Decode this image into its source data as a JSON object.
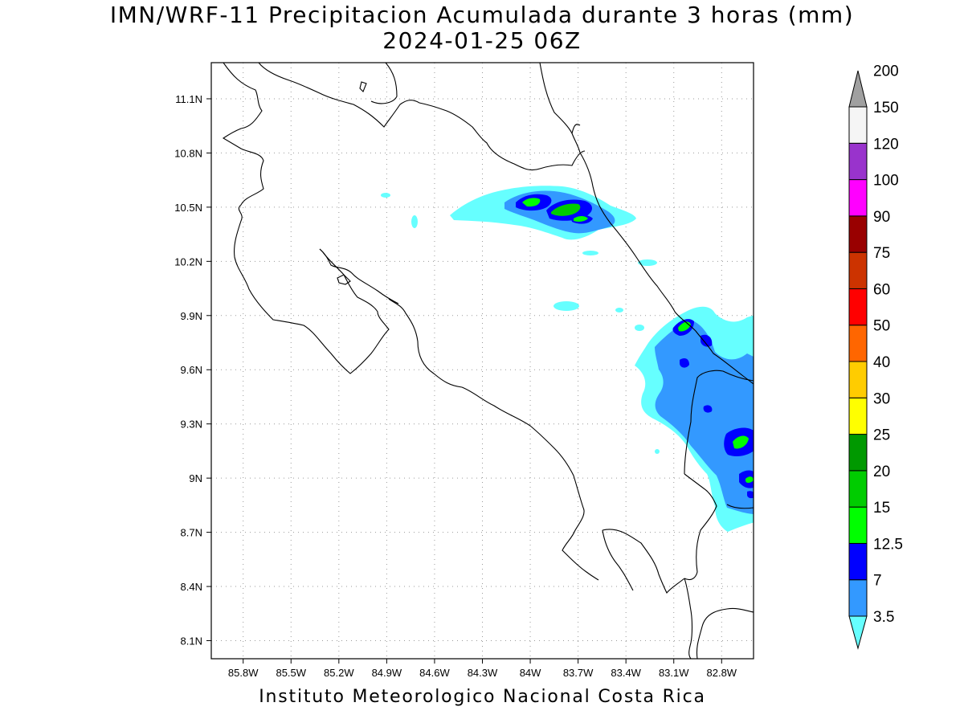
{
  "header": {
    "title": "IMN/WRF-11 Precipitacion Acumulada durante 3 horas (mm)",
    "subtitle": "2024-01-25 06Z"
  },
  "footer": {
    "credit": "Instituto Meteorologico Nacional Costa Rica"
  },
  "map": {
    "lon_range": [
      -86.0,
      -82.6
    ],
    "lat_range": [
      8.0,
      11.3
    ],
    "lon_ticks": [
      {
        "value": -85.8,
        "label": "85.8W"
      },
      {
        "value": -85.5,
        "label": "85.5W"
      },
      {
        "value": -85.2,
        "label": "85.2W"
      },
      {
        "value": -84.9,
        "label": "84.9W"
      },
      {
        "value": -84.6,
        "label": "84.6W"
      },
      {
        "value": -84.3,
        "label": "84.3W"
      },
      {
        "value": -84.0,
        "label": "84W"
      },
      {
        "value": -83.7,
        "label": "83.7W"
      },
      {
        "value": -83.4,
        "label": "83.4W"
      },
      {
        "value": -83.1,
        "label": "83.1W"
      },
      {
        "value": -82.8,
        "label": "82.8W"
      }
    ],
    "lat_ticks": [
      {
        "value": 8.1,
        "label": "8.1N"
      },
      {
        "value": 8.4,
        "label": "8.4N"
      },
      {
        "value": 8.7,
        "label": "8.7N"
      },
      {
        "value": 9.0,
        "label": "9N"
      },
      {
        "value": 9.3,
        "label": "9.3N"
      },
      {
        "value": 9.6,
        "label": "9.6N"
      },
      {
        "value": 9.9,
        "label": "9.9N"
      },
      {
        "value": 10.2,
        "label": "10.2N"
      },
      {
        "value": 10.5,
        "label": "10.5N"
      },
      {
        "value": 10.8,
        "label": "10.8N"
      },
      {
        "value": 11.1,
        "label": "11.1N"
      }
    ],
    "grid": true
  },
  "colorbar": {
    "levels": [
      {
        "label": "3.5",
        "color": "#66ffff"
      },
      {
        "label": "7",
        "color": "#3399ff"
      },
      {
        "label": "12.5",
        "color": "#0000ff"
      },
      {
        "label": "15",
        "color": "#00ff00"
      },
      {
        "label": "20",
        "color": "#00cc00"
      },
      {
        "label": "25",
        "color": "#009900"
      },
      {
        "label": "30",
        "color": "#ffff00"
      },
      {
        "label": "40",
        "color": "#ffcc00"
      },
      {
        "label": "50",
        "color": "#ff6600"
      },
      {
        "label": "60",
        "color": "#ff0000"
      },
      {
        "label": "75",
        "color": "#cc3300"
      },
      {
        "label": "90",
        "color": "#990000"
      },
      {
        "label": "100",
        "color": "#ff00ff"
      },
      {
        "label": "120",
        "color": "#9933cc"
      },
      {
        "label": "150",
        "color": "#f5f5f5"
      },
      {
        "label": "200",
        "color": "#a0a0a0"
      }
    ]
  }
}
